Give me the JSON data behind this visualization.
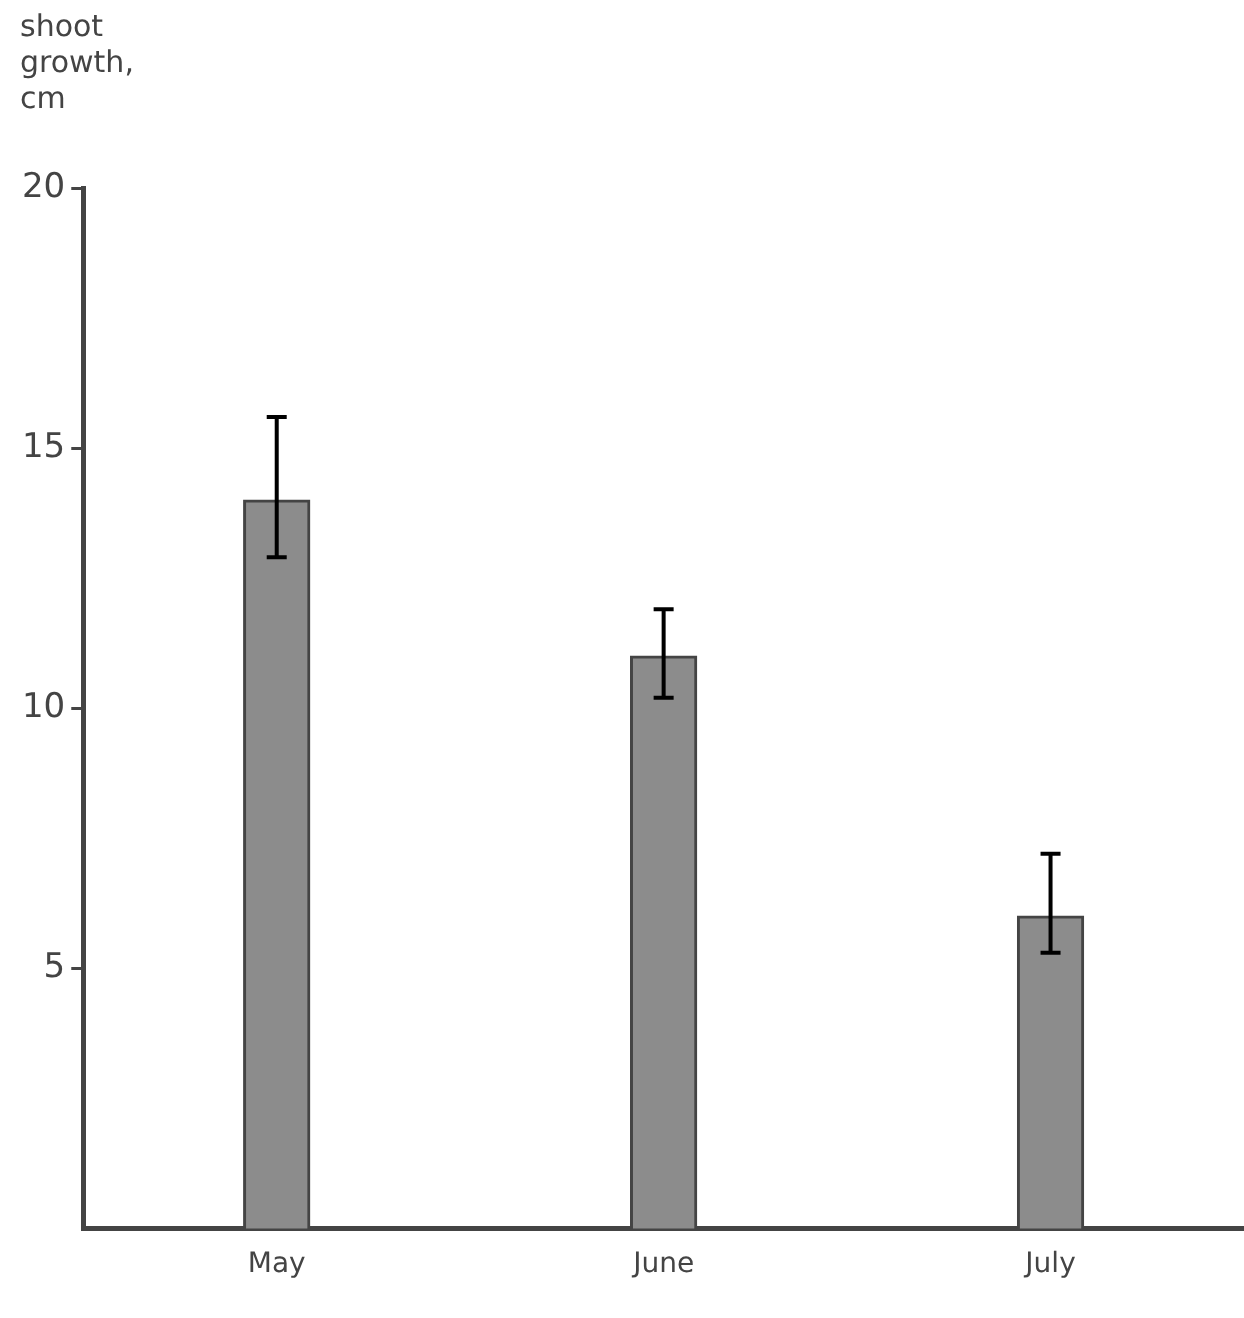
{
  "chart_data": {
    "type": "bar",
    "ylabel": "shoot growth, cm",
    "categories": [
      "May",
      "June",
      "July"
    ],
    "values": [
      14,
      11,
      6
    ],
    "errors": [
      [
        12.9,
        15.6
      ],
      [
        10.2,
        11.9
      ],
      [
        5.3,
        7.2
      ]
    ],
    "color": "#8c8c8c",
    "ylim": [
      0,
      20
    ],
    "yticks": [
      5,
      10,
      15,
      20
    ],
    "grid": false,
    "legend": false
  }
}
